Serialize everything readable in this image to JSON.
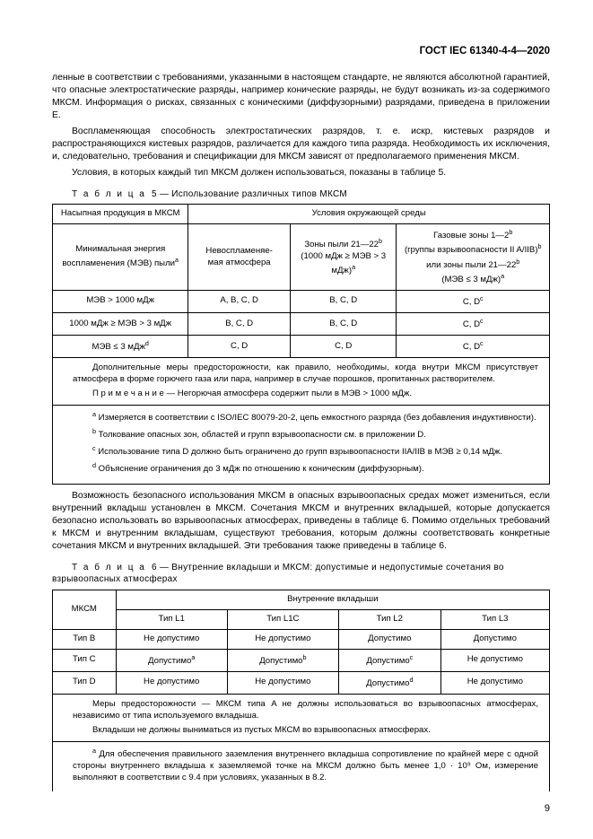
{
  "header": "ГОСТ IEC 61340-4-4—2020",
  "para1": "ленные в соответствии с требованиями, указанными в настоящем стандарте, не являются абсолютной гарантией, что опасные электростатические разряды, например конические разряды, не будут возникать из-за содержимого МКСМ. Информация о рисках, связанных с коническими (диффузорными) разрядами, приведена в приложении Е.",
  "para2": "Воспламеняющая способность электростатических разрядов, т. е. искр, кистевых разрядов и распространяющихся кистевых разрядов, различается для каждого типа разряда. Необходимость их исключения, и, следовательно, требования и спецификации для МКСМ зависят от предполагаемого применения МКСМ.",
  "para3": "Условия, в которых каждый тип МКСМ должен использоваться, показаны в таблице 5.",
  "table5": {
    "caption_prefix": "Т а б л и ц а",
    "caption": "5 — Использование различных типов МКСМ",
    "h1a": "Насыпная продукция в МКСМ",
    "h1b": "Условия окружающей среды",
    "h2a_line1": "Минимальная энергия",
    "h2a_line2": "воспламенения (МЭВ) пыли",
    "h2b_line1": "Невоспламеняе-",
    "h2b_line2": "мая атмосфера",
    "h2c_line1": "Зоны пыли 21—22",
    "h2c_line2": "(1000 мДж ≥ МЭВ > 3 мДж)",
    "h2d_line1": "Газовые зоны 1—2",
    "h2d_line2": "(группы взрывоопасности II A/IIB)",
    "h2d_line3": "или зоны пыли 21—22",
    "h2d_line4": "(МЭВ ≤ 3 мДж)",
    "r1c1": "МЭВ > 1000 мДж",
    "r1c2": "A, B, C, D",
    "r1c3": "B, C, D",
    "r1c4": "C, D",
    "r2c1": "1000 мДж ≥ МЭВ > 3 мДж",
    "r2c2": "B, C, D",
    "r2c3": "B, C, D",
    "r2c4": "C, D",
    "r3c1": "МЭВ ≤ 3 мДж",
    "r3c2": "C, D",
    "r3c3": "C, D",
    "r3c4": "C, D",
    "note1": "Дополнительные меры предосторожности, как правило, необходимы, когда внутри МКСМ присутствует атмосфера в форме горючего газа или пара, например в случае порошков, пропитанных растворителем.",
    "note2": "П р и м е ч а н и е  —  Негорючая атмосфера содержит пыли в МЭВ > 1000 мДж.",
    "fn_a": "Измеряется в соответствии с ISO/IEC 80079-20-2, цепь емкостного разряда (без добавления индуктивности).",
    "fn_b": "Толкование опасных зон, областей и групп взрывоопасности см. в приложении D.",
    "fn_c": "Использование типа D должно быть ограничено до групп взрывоопасности IIA/IIB в МЭВ ≥ 0,14 мДж.",
    "fn_d": "Объяснение ограничения до 3 мДж по отношению к коническим (диффузорным)."
  },
  "para4": "Возможность безопасного использования МКСМ в опасных взрывоопасных средах может измениться, если внутренний вкладыш установлен в МКСМ. Сочетания МКСМ и внутренних вкладышей, которые допускается безопасно использовать во взрывоопасных атмосферах, приведены в таблице 6. Помимо отдельных требований к МКСМ и внутренним вкладышам, существуют требования, которым должны соответствовать конкретные сочетания МКСМ и внутренних вкладышей. Эти требования также приведены в таблице 6.",
  "table6": {
    "caption_prefix": "Т а б л и ц а",
    "caption": "6 — Внутренние вкладыши и МКСМ: допустимые и недопустимые сочетания во взрывоопасных атмосферах",
    "h_mksm": "МКСМ",
    "h_inner": "Внутренние вкладыши",
    "h_l1": "Тип L1",
    "h_l1c": "Тип L1C",
    "h_l2": "Тип L2",
    "h_l3": "Тип L3",
    "rowB_0": "Тип B",
    "rowB_1": "Не допустимо",
    "rowB_2": "Не допустимо",
    "rowB_3": "Допустимо",
    "rowB_4": "Допустимо",
    "rowC_0": "Тип C",
    "rowC_1": "Допустимо",
    "rowC_2": "Допустимо",
    "rowC_3": "Допустимо",
    "rowC_4": "Не допустимо",
    "rowD_0": "Тип D",
    "rowD_1": "Не допустимо",
    "rowD_2": "Не допустимо",
    "rowD_3": "Допустимо",
    "rowD_4": "Не допустимо",
    "note1": "Меры предосторожности —  МКСМ типа A не должны использоваться во взрывоопасных атмосферах, независимо от типа используемого вкладыша.",
    "note2": "Вкладыши не должны выниматься из пустых МКСМ во взрывоопасных атмосферах.",
    "fn_a": "Для обеспечения правильного заземления внутреннего вкладыша сопротивление по крайней мере с одной стороны внутреннего вкладыша к заземляемой точке на МКСМ должно быть менее 1,0 · 10⁹ Ом, измерение выполняют в соответствии с 9.4 при условиях, указанных в 8.2."
  },
  "page_number": "9"
}
